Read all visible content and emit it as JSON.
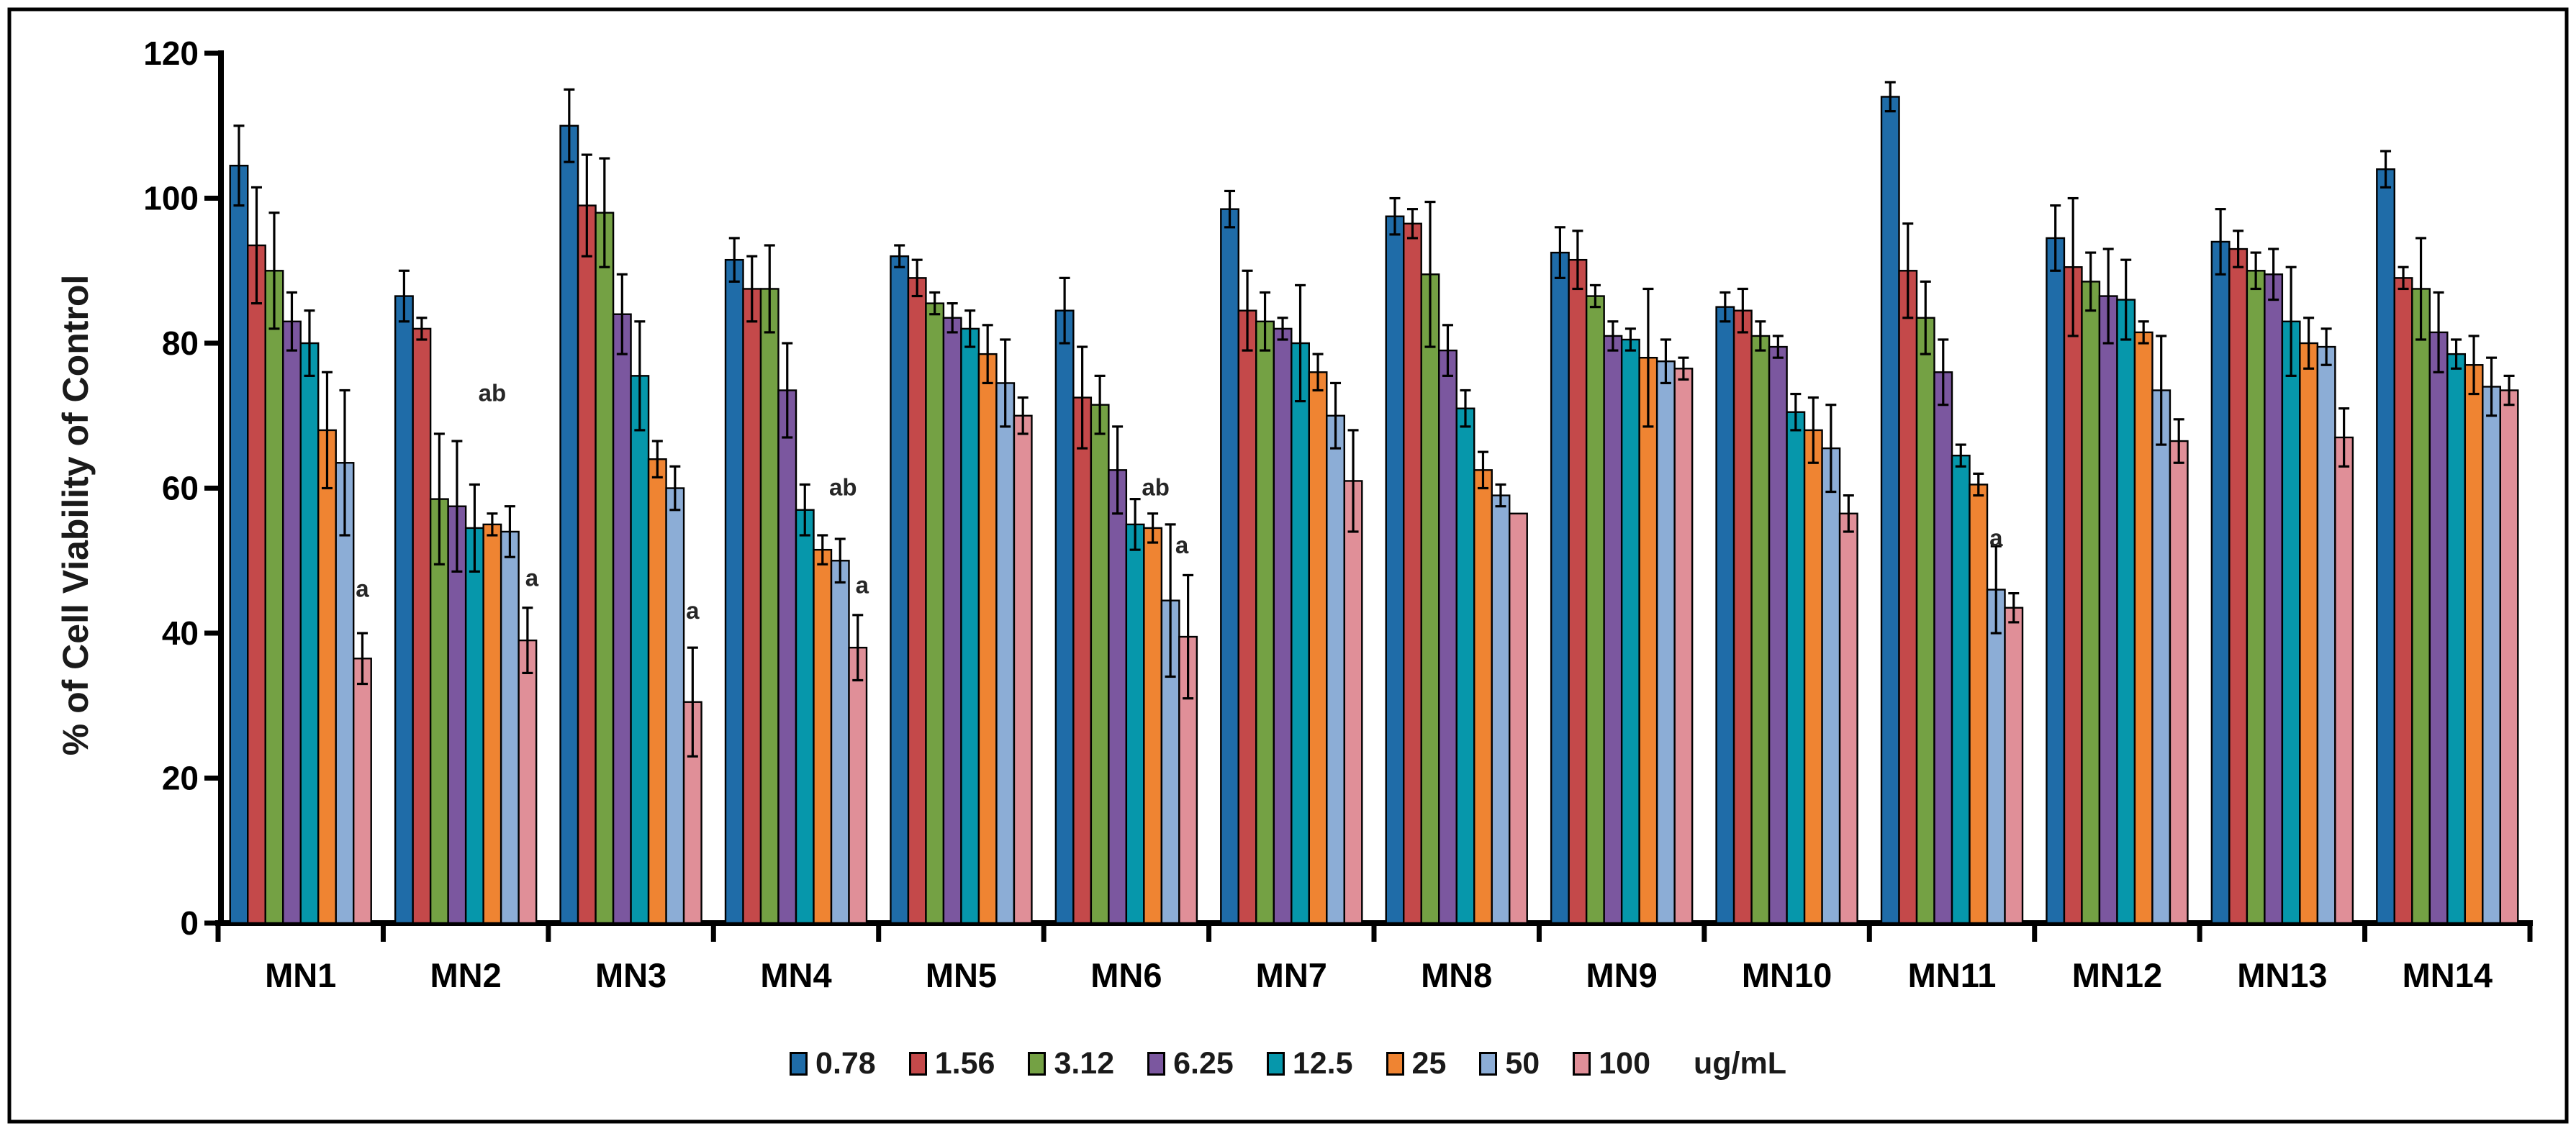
{
  "chart_data": {
    "type": "bar",
    "title": "",
    "xlabel": "",
    "ylabel": "% of Cell Viability of Control",
    "ylim": [
      0,
      120
    ],
    "yticks": [
      0,
      20,
      40,
      60,
      80,
      100,
      120
    ],
    "grid": false,
    "legend_position": "bottom",
    "unit_label": "ug/mL",
    "axis_color": "#000000",
    "error_bar_color": "#000000",
    "annotation_color": "#262626",
    "categories": [
      "MN1",
      "MN2",
      "MN3",
      "MN4",
      "MN5",
      "MN6",
      "MN7",
      "MN8",
      "MN9",
      "MN10",
      "MN11",
      "MN12",
      "MN13",
      "MN14"
    ],
    "series": [
      {
        "name": "0.78",
        "color": "#1F6CA8",
        "values": [
          104.5,
          86.5,
          110,
          91.5,
          92,
          84.5,
          98.5,
          97.5,
          92.5,
          85,
          114,
          94.5,
          94,
          104
        ],
        "errors": [
          5.5,
          3.5,
          5,
          3,
          1.5,
          4.5,
          2.5,
          2.5,
          3.5,
          2,
          2,
          4.5,
          4.5,
          2.5
        ]
      },
      {
        "name": "1.56",
        "color": "#C4494A",
        "values": [
          93.5,
          82,
          99,
          87.5,
          89,
          72.5,
          84.5,
          96.5,
          91.5,
          84.5,
          90,
          90.5,
          93,
          89
        ],
        "errors": [
          8,
          1.5,
          7,
          4.5,
          2.5,
          7,
          5.5,
          2,
          4,
          3,
          6.5,
          9.5,
          2.5,
          1.5
        ]
      },
      {
        "name": "3.12",
        "color": "#74A144",
        "values": [
          90,
          58.5,
          98,
          87.5,
          85.5,
          71.5,
          83,
          89.5,
          86.5,
          81,
          83.5,
          88.5,
          90,
          87.5
        ],
        "errors": [
          8,
          9,
          7.5,
          6,
          1.5,
          4,
          4,
          10,
          1.5,
          2,
          5,
          4,
          2.5,
          7
        ]
      },
      {
        "name": "6.25",
        "color": "#7B579F",
        "values": [
          83,
          57.5,
          84,
          73.5,
          83.5,
          62.5,
          82,
          79,
          81,
          79.5,
          76,
          86.5,
          89.5,
          81.5
        ],
        "errors": [
          4,
          9,
          5.5,
          6.5,
          2,
          6,
          1.5,
          3.5,
          2,
          1.5,
          4.5,
          6.5,
          3.5,
          5.5
        ]
      },
      {
        "name": "12.5",
        "color": "#0697AB",
        "values": [
          80,
          54.5,
          75.5,
          57,
          82,
          55,
          80,
          71,
          80.5,
          70.5,
          64.5,
          86,
          83,
          78.5
        ],
        "errors": [
          4.5,
          6,
          7.5,
          3.5,
          2.5,
          3.5,
          8,
          2.5,
          1.5,
          2.5,
          1.5,
          5.5,
          7.5,
          2
        ]
      },
      {
        "name": "25",
        "color": "#EF8432",
        "values": [
          68,
          55,
          64,
          51.5,
          78.5,
          54.5,
          76,
          62.5,
          78,
          68,
          60.5,
          81.5,
          80,
          77
        ],
        "errors": [
          8,
          1.5,
          2.5,
          2,
          4,
          2,
          2.5,
          2.5,
          9.5,
          4.5,
          1.5,
          1.5,
          3.5,
          4
        ]
      },
      {
        "name": "50",
        "color": "#8CADD6",
        "values": [
          63.5,
          54,
          60,
          50,
          74.5,
          44.5,
          70,
          59,
          77.5,
          65.5,
          46,
          73.5,
          79.5,
          74
        ],
        "errors": [
          10,
          3.5,
          3,
          3,
          6,
          10.5,
          4.5,
          1.5,
          3,
          6,
          6,
          7.5,
          2.5,
          4
        ]
      },
      {
        "name": "100",
        "color": "#E08F98",
        "values": [
          36.5,
          39,
          30.5,
          38,
          70,
          39.5,
          61,
          56.5,
          76.5,
          56.5,
          43.5,
          66.5,
          67,
          73.5
        ],
        "errors": [
          3.5,
          4.5,
          7.5,
          4.5,
          2.5,
          8.5,
          7,
          0,
          1.5,
          2.5,
          2,
          3,
          4,
          2
        ]
      }
    ],
    "annotations": [
      {
        "category": "MN1",
        "series": "100",
        "label": "a",
        "y": 45,
        "dx": 0
      },
      {
        "category": "MN2",
        "series": "25",
        "label": "ab",
        "y": 72,
        "dx": 0
      },
      {
        "category": "MN2",
        "series": "100",
        "label": "a",
        "y": 46.5,
        "dx": 6
      },
      {
        "category": "MN3",
        "series": "100",
        "label": "a",
        "y": 42,
        "dx": 0
      },
      {
        "category": "MN4",
        "series": "50",
        "label": "ab",
        "y": 59,
        "dx": 4
      },
      {
        "category": "MN4",
        "series": "100",
        "label": "a",
        "y": 45.5,
        "dx": 6
      },
      {
        "category": "MN6",
        "series": "25",
        "label": "ab",
        "y": 59,
        "dx": 4
      },
      {
        "category": "MN6",
        "series": "50",
        "label": "a",
        "y": 51,
        "dx": 16
      },
      {
        "category": "MN11",
        "series": "50",
        "label": "a",
        "y": 52,
        "dx": 0
      }
    ]
  }
}
